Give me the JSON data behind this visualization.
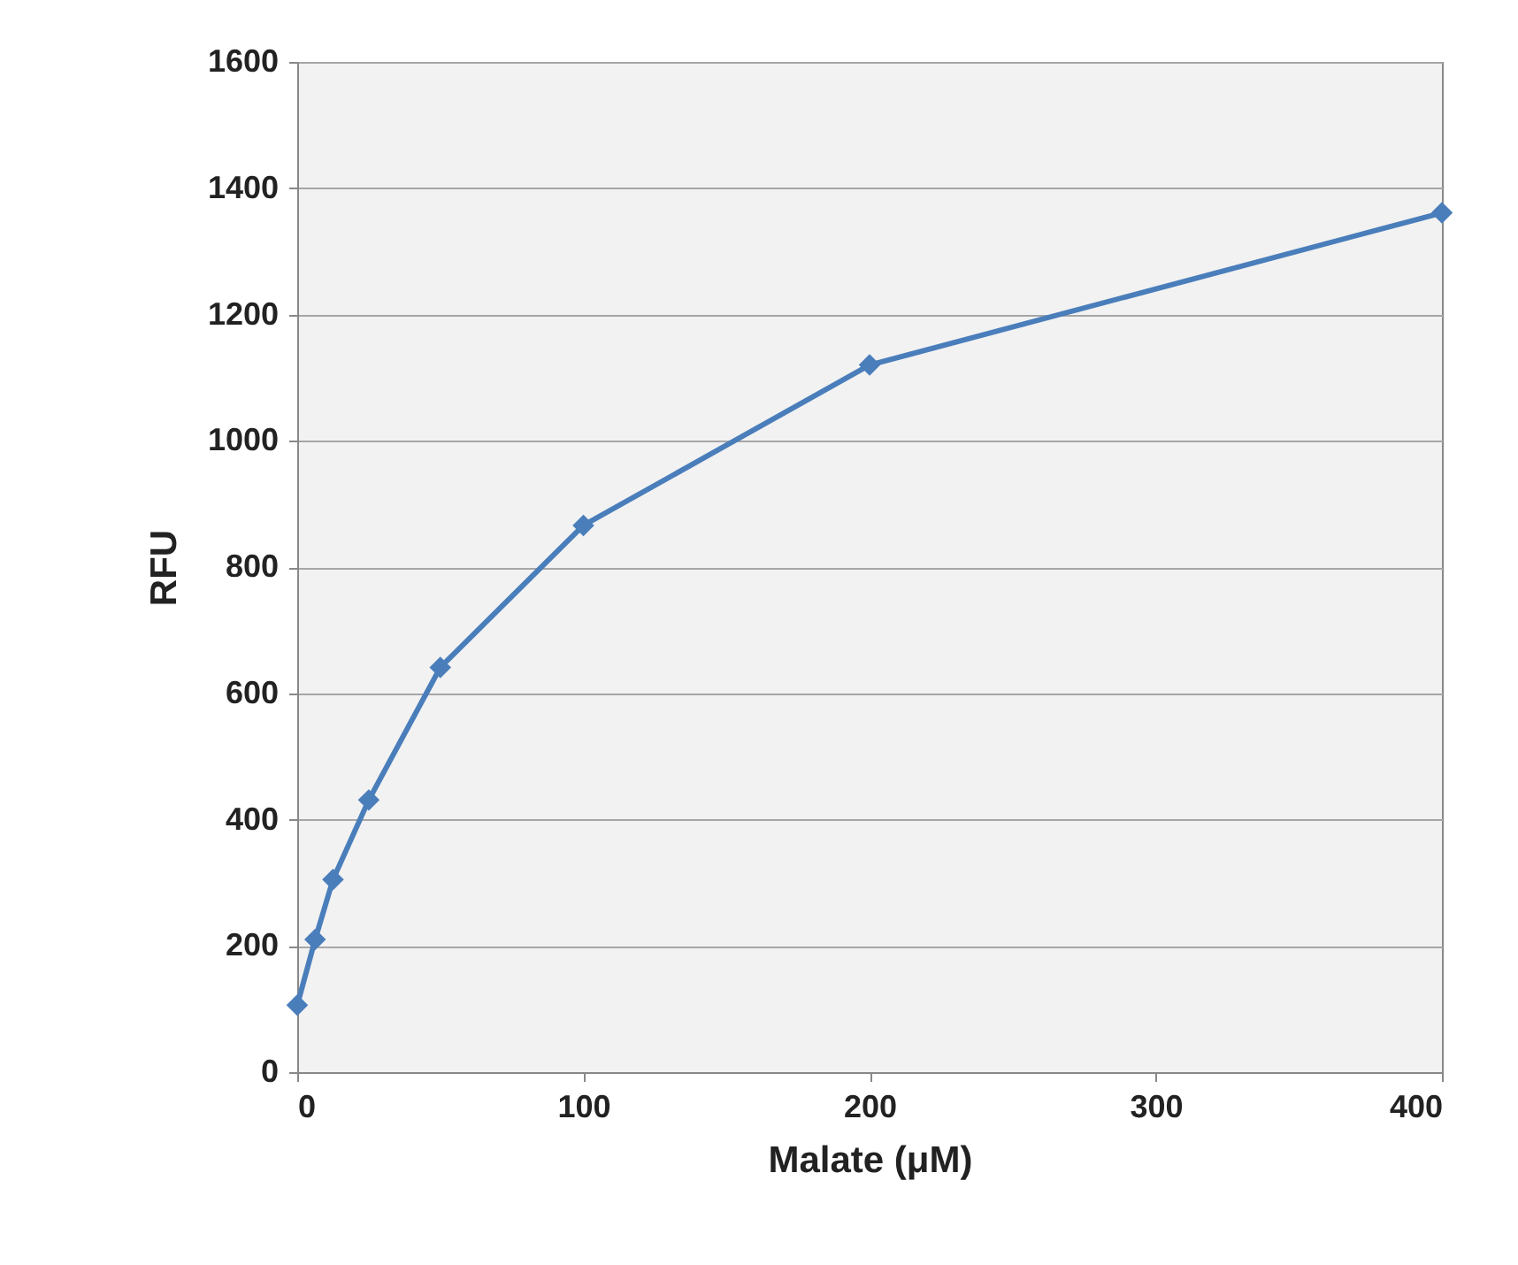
{
  "chart_data": {
    "type": "line",
    "xlabel": "Malate (μM)",
    "ylabel": "RFU",
    "x": [
      0,
      6.25,
      12.5,
      25,
      50,
      100,
      200,
      400
    ],
    "series": [
      {
        "color": "#4a7ebb",
        "values": [
          106,
          210,
          305,
          431,
          641,
          866,
          1120,
          1361
        ]
      }
    ],
    "xlim": [
      0,
      400
    ],
    "xticks": [
      0,
      100,
      200,
      300,
      400
    ],
    "ylim": [
      0,
      1600
    ],
    "yticks": [
      0,
      200,
      400,
      600,
      800,
      1000,
      1200,
      1400,
      1600
    ],
    "grid": "y",
    "marker": "diamond",
    "line_style": "solid"
  }
}
